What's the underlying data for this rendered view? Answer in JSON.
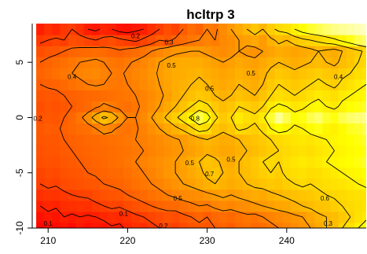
{
  "chart_data": {
    "type": "heatmap",
    "title": "hcltrp 3",
    "xlabel": "",
    "ylabel": "",
    "xlim": [
      208,
      250
    ],
    "ylim": [
      -10,
      8.5
    ],
    "x_ticks": [
      210,
      220,
      230,
      240
    ],
    "y_ticks": [
      -10,
      -5,
      0,
      5
    ],
    "y_tick_rotation": "vertical",
    "grid": false,
    "legend": "none",
    "color_scale": "heat",
    "colors": {
      "low": "#ff0000",
      "mid": "#ff8c00",
      "high": "#ffff00",
      "max": "#ffffe0"
    },
    "contour_levels": [
      0.1,
      0.2,
      0.3,
      0.4,
      0.5,
      0.6,
      0.7,
      0.8
    ],
    "contour_labels": [
      {
        "text": "0.2",
        "x": 208.7,
        "y": -0.3
      },
      {
        "text": "0.4",
        "x": 213.0,
        "y": 3.5
      },
      {
        "text": "0.5",
        "x": 225.5,
        "y": 4.5
      },
      {
        "text": "0.5",
        "x": 230.3,
        "y": 2.4
      },
      {
        "text": "0.8",
        "x": 228.5,
        "y": -0.3
      },
      {
        "text": "0.5",
        "x": 235.5,
        "y": 3.8
      },
      {
        "text": "0.4",
        "x": 246.5,
        "y": 3.5
      },
      {
        "text": "0.5",
        "x": 233.0,
        "y": -4.0
      },
      {
        "text": "0.5",
        "x": 227.8,
        "y": -4.3
      },
      {
        "text": "0.5",
        "x": 226.3,
        "y": -7.5
      },
      {
        "text": "0.6",
        "x": 244.8,
        "y": -7.5
      },
      {
        "text": "0.7",
        "x": 230.3,
        "y": -5.3
      },
      {
        "text": "0.1",
        "x": 219.5,
        "y": -8.9
      },
      {
        "text": "0.2",
        "x": 224.5,
        "y": -10.0
      },
      {
        "text": "0.3",
        "x": 237.3,
        "y": -11.0
      },
      {
        "text": "0.1",
        "x": 210.0,
        "y": -9.8
      },
      {
        "text": "0.3",
        "x": 245.2,
        "y": -9.8
      },
      {
        "text": "0.2",
        "x": 221.0,
        "y": 7.2
      },
      {
        "text": "0.3",
        "x": 225.2,
        "y": 6.6
      }
    ],
    "grid_x": [
      209.0,
      210.0,
      211.0,
      212.0,
      213.0,
      214.0,
      215.0,
      216.0,
      217.0,
      218.0,
      219.0,
      220.0,
      221.0,
      222.0,
      223.0,
      224.0,
      225.0,
      226.0,
      227.0,
      228.0,
      229.0,
      230.0,
      231.0,
      232.0,
      233.0,
      234.0,
      235.0,
      236.0,
      237.0,
      238.0,
      239.0,
      240.0,
      241.0,
      242.0,
      243.0,
      244.0,
      245.0,
      246.0,
      247.0,
      248.0,
      249.0,
      250.0
    ],
    "grid_y": [
      -10.0,
      -9.0,
      -8.0,
      -7.0,
      -6.0,
      -5.0,
      -4.0,
      -3.0,
      -2.0,
      -1.0,
      0.0,
      1.0,
      2.0,
      3.0,
      4.0,
      5.0,
      6.0,
      7.0,
      8.0
    ],
    "z": [
      [
        0.02,
        0.05,
        0.03,
        0.06,
        0.04,
        0.08,
        0.05,
        0.07,
        0.06,
        0.09,
        0.08,
        0.12,
        0.15,
        0.14,
        0.18,
        0.2,
        0.22,
        0.2,
        0.24,
        0.26,
        0.28,
        0.27,
        0.3,
        0.32,
        0.3,
        0.34,
        0.36,
        0.33,
        0.35,
        0.38,
        0.4,
        0.42,
        0.45,
        0.48,
        0.5,
        0.55,
        0.6,
        0.62,
        0.7,
        0.75,
        0.8,
        0.85
      ],
      [
        0.05,
        0.08,
        0.06,
        0.1,
        0.08,
        0.1,
        0.09,
        0.1,
        0.12,
        0.14,
        0.13,
        0.15,
        0.18,
        0.2,
        0.22,
        0.24,
        0.26,
        0.25,
        0.28,
        0.3,
        0.32,
        0.3,
        0.33,
        0.35,
        0.34,
        0.36,
        0.38,
        0.37,
        0.4,
        0.42,
        0.44,
        0.46,
        0.48,
        0.5,
        0.54,
        0.58,
        0.6,
        0.62,
        0.66,
        0.7,
        0.75,
        0.78
      ],
      [
        0.1,
        0.12,
        0.11,
        0.14,
        0.15,
        0.16,
        0.15,
        0.18,
        0.2,
        0.22,
        0.21,
        0.24,
        0.26,
        0.28,
        0.3,
        0.32,
        0.33,
        0.34,
        0.36,
        0.38,
        0.4,
        0.39,
        0.42,
        0.44,
        0.43,
        0.45,
        0.46,
        0.48,
        0.5,
        0.52,
        0.54,
        0.55,
        0.58,
        0.6,
        0.62,
        0.64,
        0.65,
        0.68,
        0.7,
        0.72,
        0.74,
        0.76
      ],
      [
        0.15,
        0.17,
        0.16,
        0.18,
        0.2,
        0.21,
        0.22,
        0.24,
        0.26,
        0.27,
        0.28,
        0.3,
        0.32,
        0.34,
        0.36,
        0.38,
        0.4,
        0.42,
        0.44,
        0.45,
        0.46,
        0.48,
        0.5,
        0.52,
        0.5,
        0.52,
        0.54,
        0.56,
        0.55,
        0.58,
        0.6,
        0.62,
        0.63,
        0.65,
        0.66,
        0.68,
        0.7,
        0.71,
        0.72,
        0.74,
        0.75,
        0.76
      ],
      [
        0.2,
        0.22,
        0.21,
        0.24,
        0.25,
        0.26,
        0.27,
        0.28,
        0.3,
        0.31,
        0.32,
        0.34,
        0.36,
        0.38,
        0.4,
        0.42,
        0.45,
        0.47,
        0.5,
        0.52,
        0.55,
        0.58,
        0.6,
        0.58,
        0.56,
        0.58,
        0.6,
        0.62,
        0.64,
        0.66,
        0.65,
        0.68,
        0.7,
        0.72,
        0.7,
        0.72,
        0.74,
        0.75,
        0.76,
        0.78,
        0.8,
        0.82
      ],
      [
        0.22,
        0.24,
        0.23,
        0.26,
        0.27,
        0.28,
        0.3,
        0.31,
        0.32,
        0.33,
        0.34,
        0.36,
        0.38,
        0.4,
        0.42,
        0.45,
        0.48,
        0.5,
        0.52,
        0.55,
        0.58,
        0.62,
        0.65,
        0.6,
        0.58,
        0.6,
        0.62,
        0.65,
        0.68,
        0.7,
        0.68,
        0.72,
        0.74,
        0.75,
        0.73,
        0.74,
        0.76,
        0.78,
        0.8,
        0.82,
        0.83,
        0.85
      ],
      [
        0.25,
        0.26,
        0.26,
        0.28,
        0.29,
        0.3,
        0.31,
        0.32,
        0.33,
        0.35,
        0.36,
        0.38,
        0.4,
        0.42,
        0.44,
        0.46,
        0.48,
        0.5,
        0.53,
        0.56,
        0.6,
        0.64,
        0.62,
        0.58,
        0.56,
        0.6,
        0.63,
        0.66,
        0.7,
        0.72,
        0.7,
        0.74,
        0.76,
        0.78,
        0.76,
        0.78,
        0.8,
        0.82,
        0.84,
        0.85,
        0.86,
        0.88
      ],
      [
        0.26,
        0.27,
        0.27,
        0.29,
        0.3,
        0.31,
        0.32,
        0.33,
        0.34,
        0.35,
        0.36,
        0.37,
        0.39,
        0.4,
        0.42,
        0.44,
        0.46,
        0.48,
        0.5,
        0.52,
        0.55,
        0.58,
        0.56,
        0.54,
        0.55,
        0.58,
        0.6,
        0.62,
        0.65,
        0.68,
        0.7,
        0.72,
        0.74,
        0.75,
        0.74,
        0.76,
        0.78,
        0.8,
        0.82,
        0.84,
        0.85,
        0.86
      ],
      [
        0.27,
        0.28,
        0.28,
        0.3,
        0.31,
        0.32,
        0.33,
        0.34,
        0.35,
        0.36,
        0.37,
        0.38,
        0.4,
        0.41,
        0.43,
        0.45,
        0.47,
        0.49,
        0.51,
        0.54,
        0.57,
        0.6,
        0.58,
        0.56,
        0.57,
        0.6,
        0.62,
        0.64,
        0.67,
        0.7,
        0.72,
        0.74,
        0.76,
        0.77,
        0.76,
        0.78,
        0.8,
        0.82,
        0.84,
        0.85,
        0.86,
        0.88
      ],
      [
        0.28,
        0.3,
        0.29,
        0.31,
        0.33,
        0.35,
        0.36,
        0.4,
        0.45,
        0.42,
        0.38,
        0.37,
        0.39,
        0.42,
        0.46,
        0.5,
        0.54,
        0.58,
        0.62,
        0.68,
        0.75,
        0.72,
        0.65,
        0.62,
        0.66,
        0.72,
        0.7,
        0.68,
        0.72,
        0.8,
        0.85,
        0.82,
        0.78,
        0.8,
        0.84,
        0.86,
        0.82,
        0.8,
        0.84,
        0.87,
        0.88,
        0.9
      ],
      [
        0.26,
        0.28,
        0.27,
        0.3,
        0.33,
        0.38,
        0.45,
        0.55,
        0.62,
        0.58,
        0.48,
        0.4,
        0.4,
        0.44,
        0.5,
        0.56,
        0.62,
        0.68,
        0.75,
        0.82,
        0.9,
        0.85,
        0.72,
        0.66,
        0.7,
        0.78,
        0.74,
        0.72,
        0.78,
        0.88,
        0.95,
        0.9,
        0.84,
        0.86,
        0.9,
        0.92,
        0.88,
        0.86,
        0.9,
        0.92,
        0.93,
        0.94
      ],
      [
        0.25,
        0.27,
        0.26,
        0.28,
        0.3,
        0.32,
        0.34,
        0.38,
        0.42,
        0.4,
        0.37,
        0.36,
        0.38,
        0.42,
        0.46,
        0.5,
        0.55,
        0.6,
        0.64,
        0.7,
        0.75,
        0.72,
        0.66,
        0.62,
        0.65,
        0.7,
        0.68,
        0.66,
        0.7,
        0.78,
        0.82,
        0.8,
        0.76,
        0.78,
        0.82,
        0.84,
        0.8,
        0.78,
        0.82,
        0.85,
        0.86,
        0.88
      ],
      [
        0.27,
        0.28,
        0.28,
        0.3,
        0.31,
        0.32,
        0.33,
        0.34,
        0.35,
        0.36,
        0.37,
        0.38,
        0.4,
        0.42,
        0.45,
        0.48,
        0.52,
        0.56,
        0.6,
        0.63,
        0.66,
        0.64,
        0.6,
        0.58,
        0.6,
        0.64,
        0.62,
        0.6,
        0.64,
        0.7,
        0.74,
        0.72,
        0.7,
        0.72,
        0.75,
        0.78,
        0.76,
        0.74,
        0.78,
        0.8,
        0.82,
        0.84
      ],
      [
        0.3,
        0.31,
        0.32,
        0.34,
        0.36,
        0.38,
        0.4,
        0.41,
        0.4,
        0.39,
        0.38,
        0.4,
        0.42,
        0.44,
        0.47,
        0.5,
        0.53,
        0.56,
        0.58,
        0.6,
        0.62,
        0.6,
        0.57,
        0.55,
        0.57,
        0.6,
        0.58,
        0.56,
        0.6,
        0.66,
        0.7,
        0.68,
        0.66,
        0.68,
        0.7,
        0.72,
        0.7,
        0.68,
        0.72,
        0.75,
        0.78,
        0.8
      ],
      [
        0.32,
        0.34,
        0.36,
        0.38,
        0.4,
        0.42,
        0.43,
        0.44,
        0.42,
        0.4,
        0.39,
        0.41,
        0.43,
        0.45,
        0.48,
        0.51,
        0.54,
        0.56,
        0.57,
        0.58,
        0.59,
        0.57,
        0.55,
        0.53,
        0.55,
        0.58,
        0.56,
        0.54,
        0.58,
        0.62,
        0.66,
        0.64,
        0.62,
        0.64,
        0.66,
        0.68,
        0.66,
        0.64,
        0.68,
        0.7,
        0.74,
        0.76
      ],
      [
        0.3,
        0.32,
        0.34,
        0.36,
        0.38,
        0.4,
        0.41,
        0.42,
        0.4,
        0.38,
        0.37,
        0.39,
        0.41,
        0.43,
        0.46,
        0.5,
        0.53,
        0.55,
        0.56,
        0.56,
        0.56,
        0.54,
        0.52,
        0.5,
        0.52,
        0.55,
        0.53,
        0.52,
        0.55,
        0.58,
        0.6,
        0.58,
        0.56,
        0.58,
        0.6,
        0.62,
        0.6,
        0.58,
        0.62,
        0.65,
        0.7,
        0.72
      ],
      [
        0.25,
        0.27,
        0.28,
        0.3,
        0.32,
        0.33,
        0.34,
        0.35,
        0.34,
        0.32,
        0.31,
        0.33,
        0.35,
        0.37,
        0.4,
        0.43,
        0.46,
        0.48,
        0.49,
        0.5,
        0.5,
        0.48,
        0.46,
        0.45,
        0.47,
        0.5,
        0.48,
        0.47,
        0.5,
        0.53,
        0.56,
        0.55,
        0.53,
        0.55,
        0.57,
        0.6,
        0.58,
        0.56,
        0.6,
        0.64,
        0.68,
        0.72
      ],
      [
        0.18,
        0.2,
        0.22,
        0.2,
        0.25,
        0.24,
        0.22,
        0.2,
        0.23,
        0.25,
        0.22,
        0.2,
        0.18,
        0.22,
        0.25,
        0.3,
        0.28,
        0.32,
        0.35,
        0.38,
        0.4,
        0.42,
        0.4,
        0.44,
        0.46,
        0.5,
        0.52,
        0.55,
        0.5,
        0.58,
        0.62,
        0.6,
        0.65,
        0.68,
        0.7,
        0.72,
        0.75,
        0.78,
        0.82,
        0.86,
        0.9,
        0.92
      ],
      [
        0.1,
        0.15,
        0.12,
        0.18,
        0.2,
        0.15,
        0.1,
        0.08,
        0.12,
        0.1,
        0.06,
        0.05,
        0.08,
        0.1,
        0.15,
        0.2,
        0.25,
        0.22,
        0.3,
        0.35,
        0.32,
        0.4,
        0.38,
        0.45,
        0.5,
        0.55,
        0.6,
        0.65,
        0.6,
        0.68,
        0.72,
        0.75,
        0.8,
        0.85,
        0.88,
        0.9,
        0.92,
        0.94,
        0.95,
        0.96,
        0.97,
        0.98
      ]
    ]
  }
}
